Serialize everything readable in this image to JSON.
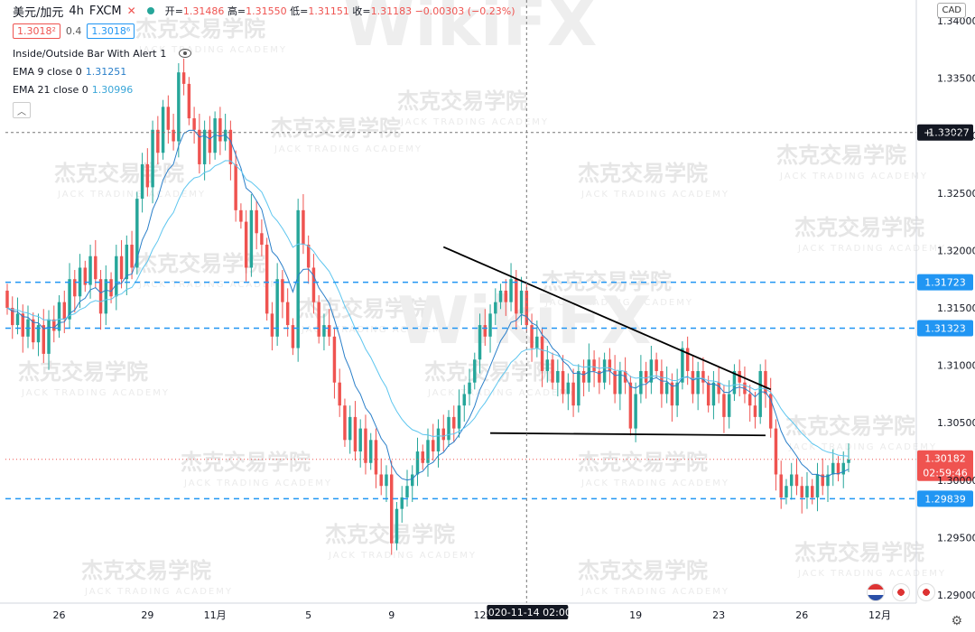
{
  "header": {
    "symbol": "美元/加元",
    "interval": "4h",
    "exchange": "FXCM",
    "close_icon": "x-icon",
    "status_color": "#26a69a",
    "ohlc": {
      "open_label": "开",
      "open": "1.31486",
      "high_label": "高",
      "high": "1.31550",
      "low_label": "低",
      "low": "1.31151",
      "close_label": "收",
      "close": "1.31183",
      "change": "−0.00303 (−0.23%)"
    },
    "sell_price": "1.3018²",
    "spread": "0.4",
    "buy_price": "1.3018⁶"
  },
  "indicators": [
    {
      "label": "Inside/Outside Bar With Alert",
      "value": "1",
      "icon": "eye-off-icon"
    },
    {
      "label": "EMA 9 close 0",
      "value": "1.31251"
    },
    {
      "label": "EMA 21 close 0",
      "value": "1.30996"
    }
  ],
  "currency_badge": "CAD",
  "watermark": {
    "cn": "杰克交易学院",
    "en": "JACK TRADING ACADEMY",
    "brand": "WikiFX"
  },
  "chart_data": {
    "type": "candlestick",
    "ylim": [
      1.2893,
      1.3418
    ],
    "y_ticks": [
      "1.34000",
      "1.33500",
      "1.33000",
      "1.32500",
      "1.32000",
      "1.31500",
      "1.31000",
      "1.30500",
      "1.30000",
      "1.29500",
      "1.29000"
    ],
    "y_tick_values": [
      1.34,
      1.335,
      1.33,
      1.325,
      1.32,
      1.315,
      1.31,
      1.305,
      1.3,
      1.295,
      1.29
    ],
    "x_tick_labels": [
      {
        "label": "26",
        "idx": 10
      },
      {
        "label": "29",
        "idx": 27
      },
      {
        "label": "11月",
        "idx": 40
      },
      {
        "label": "5",
        "idx": 58
      },
      {
        "label": "9",
        "idx": 74
      },
      {
        "label": "12",
        "idx": 91
      },
      {
        "label": "19",
        "idx": 121
      },
      {
        "label": "23",
        "idx": 137
      },
      {
        "label": "26",
        "idx": 153
      },
      {
        "label": "12月",
        "idx": 168
      }
    ],
    "crosshair": {
      "idx": 100,
      "date_label": "2020-11-14",
      "time_label": "02:00",
      "price_label": "1.33027",
      "price": 1.33027
    },
    "hlines": [
      {
        "label": "1.31723",
        "price": 1.31723,
        "color": "#2196f3"
      },
      {
        "label": "1.31323",
        "price": 1.31323,
        "color": "#2196f3"
      },
      {
        "label": "1.29839",
        "price": 1.29839,
        "color": "#2196f3"
      }
    ],
    "last_price": {
      "label": "1.30182",
      "price": 1.30182,
      "countdown": "02:59:46",
      "color": "#ef5350"
    },
    "trendlines": [
      {
        "from": {
          "idx": 84,
          "price": 1.3203
        },
        "to": {
          "idx": 147,
          "price": 1.3079
        }
      },
      {
        "from": {
          "idx": 93,
          "price": 1.3041
        },
        "to": {
          "idx": 146,
          "price": 1.3039
        }
      }
    ],
    "ema_colors": {
      "ema9": "#2a7fc9",
      "ema21": "#5ec6ef"
    },
    "up_color": "#26a69a",
    "down_color": "#ef5350",
    "closes": [
      1.315,
      1.3135,
      1.3145,
      1.3125,
      1.314,
      1.312,
      1.3135,
      1.311,
      1.314,
      1.313,
      1.3155,
      1.314,
      1.3175,
      1.316,
      1.3185,
      1.317,
      1.3195,
      1.3175,
      1.3145,
      1.3175,
      1.316,
      1.3195,
      1.3175,
      1.3205,
      1.3185,
      1.3245,
      1.3275,
      1.3255,
      1.3305,
      1.3285,
      1.3325,
      1.3305,
      1.3295,
      1.3355,
      1.3345,
      1.3315,
      1.3305,
      1.3275,
      1.3305,
      1.3285,
      1.3315,
      1.3295,
      1.3305,
      1.3275,
      1.3235,
      1.3225,
      1.3185,
      1.3235,
      1.3215,
      1.3205,
      1.3145,
      1.3125,
      1.3175,
      1.3155,
      1.3135,
      1.3115,
      1.3235,
      1.3205,
      1.3185,
      1.3155,
      1.3125,
      1.3135,
      1.3125,
      1.3085,
      1.3065,
      1.3035,
      1.3055,
      1.3025,
      1.3045,
      1.3015,
      1.3035,
      1.3005,
      1.2995,
      1.3005,
      1.2945,
      1.2975,
      1.2985,
      1.2995,
      1.3005,
      1.3025,
      1.3015,
      1.3035,
      1.3025,
      1.3045,
      1.3035,
      1.3055,
      1.3045,
      1.3065,
      1.3075,
      1.3085,
      1.3105,
      1.3135,
      1.3125,
      1.3145,
      1.3155,
      1.3165,
      1.3155,
      1.3175,
      1.3145,
      1.3165,
      1.3135,
      1.3115,
      1.3125,
      1.3095,
      1.3105,
      1.3085,
      1.3095,
      1.3075,
      1.3085,
      1.3065,
      1.3095,
      1.3085,
      1.3105,
      1.3095,
      1.3085,
      1.3105,
      1.3095,
      1.3075,
      1.3095,
      1.3085,
      1.3045,
      1.3075,
      1.3095,
      1.3085,
      1.3105,
      1.3095,
      1.3075,
      1.3085,
      1.3065,
      1.3085,
      1.3115,
      1.3095,
      1.3075,
      1.3095,
      1.3085,
      1.3065,
      1.3085,
      1.3075,
      1.3055,
      1.3075,
      1.3095,
      1.3085,
      1.3075,
      1.3065,
      1.3055,
      1.3095,
      1.3075,
      1.3045,
      1.3005,
      1.2985,
      1.2995,
      1.3005,
      1.2995,
      1.2985,
      1.2995,
      1.2985,
      1.3005,
      1.2995,
      1.3005,
      1.3015,
      1.3005,
      1.3015,
      1.3018
    ]
  }
}
